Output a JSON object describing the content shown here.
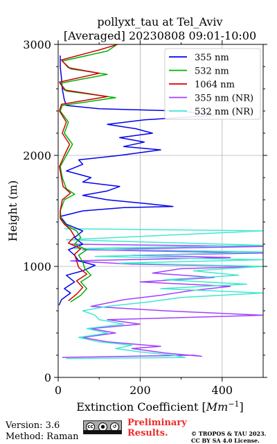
{
  "chart_data": {
    "type": "line",
    "title": "pollyxt_tau at Tel_Aviv",
    "subtitle": "[Averaged] 20230808 09:01-10:00",
    "xlabel": "Extinction Coefficient [",
    "xlabel_unit": "Mm",
    "xlabel_exp": "−1",
    "xlabel_close": "]",
    "ylabel": "Height (m)",
    "xlim": [
      0,
      500
    ],
    "ylim": [
      0,
      3000
    ],
    "x_ticks": [
      0,
      200,
      400
    ],
    "y_ticks": [
      0,
      1000,
      2000,
      3000
    ],
    "grid": true,
    "legend_position": "upper-right",
    "series": [
      {
        "name": "355 nm",
        "color": "#0000ee",
        "points": [
          [
            2,
            650
          ],
          [
            8,
            700
          ],
          [
            30,
            760
          ],
          [
            15,
            800
          ],
          [
            40,
            860
          ],
          [
            20,
            920
          ],
          [
            60,
            960
          ],
          [
            90,
            1010
          ],
          [
            50,
            1050
          ],
          [
            40,
            1100
          ],
          [
            25,
            1150
          ],
          [
            60,
            1200
          ],
          [
            40,
            1260
          ],
          [
            60,
            1320
          ],
          [
            20,
            1380
          ],
          [
            5,
            1450
          ],
          [
            60,
            1500
          ],
          [
            160,
            1530
          ],
          [
            280,
            1540
          ],
          [
            230,
            1560
          ],
          [
            120,
            1600
          ],
          [
            60,
            1640
          ],
          [
            120,
            1680
          ],
          [
            150,
            1720
          ],
          [
            60,
            1760
          ],
          [
            80,
            1800
          ],
          [
            20,
            1860
          ],
          [
            60,
            1920
          ],
          [
            50,
            1960
          ],
          [
            150,
            2000
          ],
          [
            250,
            2050
          ],
          [
            160,
            2080
          ],
          [
            210,
            2120
          ],
          [
            150,
            2160
          ],
          [
            230,
            2200
          ],
          [
            190,
            2240
          ],
          [
            120,
            2280
          ],
          [
            210,
            2320
          ],
          [
            380,
            2360
          ],
          [
            300,
            2400
          ],
          [
            100,
            2420
          ],
          [
            20,
            2450
          ],
          [
            15,
            2500
          ],
          [
            10,
            2600
          ],
          [
            8,
            2700
          ],
          [
            5,
            2800
          ],
          [
            5,
            2900
          ]
        ]
      },
      {
        "name": "532 nm",
        "color": "#00b000",
        "points": [
          [
            30,
            680
          ],
          [
            55,
            740
          ],
          [
            70,
            800
          ],
          [
            55,
            860
          ],
          [
            80,
            920
          ],
          [
            65,
            980
          ],
          [
            60,
            1040
          ],
          [
            50,
            1100
          ],
          [
            70,
            1150
          ],
          [
            40,
            1200
          ],
          [
            55,
            1260
          ],
          [
            45,
            1320
          ],
          [
            20,
            1370
          ],
          [
            8,
            1420
          ],
          [
            5,
            1500
          ],
          [
            15,
            1600
          ],
          [
            40,
            1650
          ],
          [
            20,
            1700
          ],
          [
            10,
            1800
          ],
          [
            5,
            1900
          ],
          [
            20,
            2000
          ],
          [
            35,
            2100
          ],
          [
            15,
            2200
          ],
          [
            25,
            2300
          ],
          [
            5,
            2400
          ],
          [
            10,
            2450
          ],
          [
            140,
            2520
          ],
          [
            20,
            2580
          ],
          [
            5,
            2650
          ],
          [
            120,
            2730
          ],
          [
            30,
            2780
          ],
          [
            10,
            2850
          ],
          [
            120,
            2940
          ],
          [
            140,
            2990
          ]
        ]
      },
      {
        "name": "1064 nm",
        "color": "#cc0000",
        "points": [
          [
            25,
            690
          ],
          [
            45,
            750
          ],
          [
            60,
            810
          ],
          [
            45,
            870
          ],
          [
            70,
            930
          ],
          [
            50,
            990
          ],
          [
            45,
            1050
          ],
          [
            40,
            1110
          ],
          [
            55,
            1160
          ],
          [
            25,
            1210
          ],
          [
            40,
            1270
          ],
          [
            30,
            1330
          ],
          [
            15,
            1380
          ],
          [
            5,
            1430
          ],
          [
            5,
            1500
          ],
          [
            10,
            1600
          ],
          [
            30,
            1660
          ],
          [
            12,
            1720
          ],
          [
            8,
            1800
          ],
          [
            3,
            1900
          ],
          [
            15,
            2000
          ],
          [
            28,
            2100
          ],
          [
            10,
            2200
          ],
          [
            20,
            2300
          ],
          [
            3,
            2400
          ],
          [
            8,
            2460
          ],
          [
            120,
            2530
          ],
          [
            15,
            2590
          ],
          [
            3,
            2660
          ],
          [
            100,
            2740
          ],
          [
            25,
            2790
          ],
          [
            8,
            2860
          ],
          [
            100,
            2950
          ],
          [
            145,
            3000
          ]
        ]
      },
      {
        "name": "355 nm (NR)",
        "color": "#a040ff",
        "points": [
          [
            10,
            180
          ],
          [
            330,
            200
          ],
          [
            350,
            190
          ],
          [
            260,
            220
          ],
          [
            180,
            260
          ],
          [
            250,
            280
          ],
          [
            120,
            320
          ],
          [
            60,
            360
          ],
          [
            140,
            400
          ],
          [
            80,
            440
          ],
          [
            200,
            480
          ],
          [
            120,
            520
          ],
          [
            500,
            560
          ],
          [
            260,
            600
          ],
          [
            80,
            640
          ],
          [
            160,
            700
          ],
          [
            250,
            740
          ],
          [
            320,
            780
          ],
          [
            420,
            820
          ],
          [
            200,
            860
          ],
          [
            380,
            900
          ],
          [
            230,
            940
          ],
          [
            300,
            980
          ],
          [
            500,
            1000
          ],
          [
            180,
            1020
          ],
          [
            30,
            1050
          ],
          [
            420,
            1080
          ],
          [
            180,
            1100
          ],
          [
            500,
            1120
          ],
          [
            60,
            1150
          ],
          [
            500,
            1180
          ],
          [
            30,
            1200
          ]
        ]
      },
      {
        "name": "532 nm (NR)",
        "color": "#40e8d0",
        "points": [
          [
            20,
            170
          ],
          [
            310,
            180
          ],
          [
            280,
            200
          ],
          [
            200,
            230
          ],
          [
            140,
            260
          ],
          [
            180,
            290
          ],
          [
            100,
            320
          ],
          [
            50,
            360
          ],
          [
            120,
            400
          ],
          [
            70,
            440
          ],
          [
            160,
            480
          ],
          [
            100,
            520
          ],
          [
            90,
            560
          ],
          [
            60,
            600
          ],
          [
            120,
            640
          ],
          [
            220,
            680
          ],
          [
            300,
            720
          ],
          [
            500,
            760
          ],
          [
            250,
            800
          ],
          [
            460,
            840
          ],
          [
            260,
            880
          ],
          [
            440,
            920
          ],
          [
            330,
            960
          ],
          [
            500,
            1000
          ],
          [
            150,
            1030
          ],
          [
            500,
            1060
          ],
          [
            90,
            1090
          ],
          [
            500,
            1130
          ],
          [
            40,
            1160
          ],
          [
            500,
            1190
          ],
          [
            20,
            1240
          ],
          [
            500,
            1320
          ],
          [
            15,
            1340
          ]
        ]
      }
    ]
  },
  "footer": {
    "version": "Version: 3.6",
    "method": "Method: Raman",
    "cc_label": "cc",
    "preliminary_line1": "Preliminary",
    "preliminary_line2": "Results.",
    "copyright_line1": "© TROPOS & TAU 2023.",
    "copyright_line2": "CC BY SA 4.0 License."
  }
}
